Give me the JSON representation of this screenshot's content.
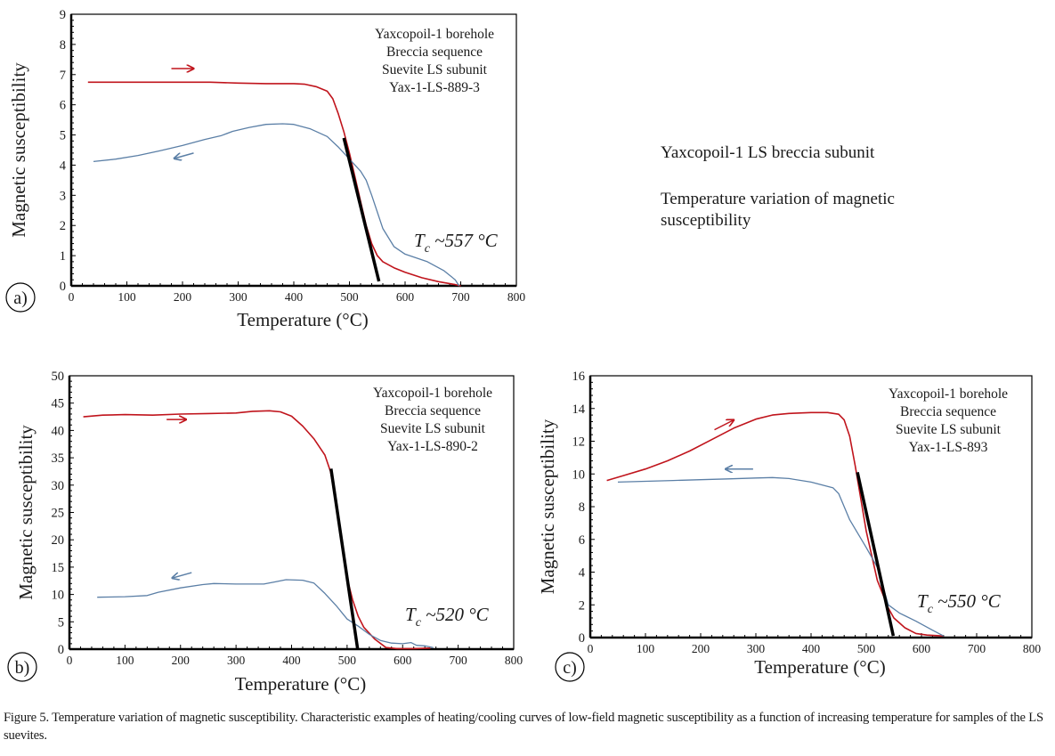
{
  "side_note": {
    "title": "Yaxcopoil-1 LS breccia subunit",
    "subtitle": "Temperature variation of magnetic susceptibility"
  },
  "caption": "Figure 5. Temperature variation of magnetic susceptibility. Characteristic examples of heating/cooling curves of low-field magnetic susceptibility as a function of increasing temperature for samples of the LS suevites.",
  "colors": {
    "heating": "#c0141c",
    "cooling": "#5b7fa6",
    "tangent": "#000000"
  },
  "chart_data": [
    {
      "id": "a",
      "panel_label": "a)",
      "type": "line",
      "xlabel": "Temperature (°C)",
      "ylabel": "Magnetic susceptibility",
      "xlim": [
        0,
        800
      ],
      "ylim": [
        0,
        9
      ],
      "xticks": [
        0,
        100,
        200,
        300,
        400,
        500,
        600,
        700,
        800
      ],
      "yticks": [
        0,
        1,
        2,
        3,
        4,
        5,
        6,
        7,
        8,
        9
      ],
      "grid": false,
      "annotation_lines": [
        "Yaxcopoil-1 borehole",
        "Breccia sequence",
        "Suevite LS subunit",
        "Yax-1-LS-889-3"
      ],
      "curie_label": {
        "symbol": "T",
        "sub": "c",
        "text": " ~557 °C",
        "value": 557
      },
      "series": [
        {
          "name": "heating",
          "direction": "→",
          "x": [
            30,
            100,
            200,
            250,
            300,
            350,
            400,
            420,
            440,
            460,
            470,
            480,
            490,
            500,
            510,
            520,
            530,
            540,
            550,
            560,
            580,
            600,
            630,
            660,
            690,
            700
          ],
          "y": [
            6.75,
            6.75,
            6.75,
            6.75,
            6.72,
            6.7,
            6.7,
            6.68,
            6.6,
            6.45,
            6.2,
            5.7,
            5.1,
            4.4,
            3.6,
            2.8,
            2.0,
            1.4,
            1.0,
            0.8,
            0.6,
            0.45,
            0.27,
            0.14,
            0.04,
            0.0
          ]
        },
        {
          "name": "cooling",
          "direction": "←",
          "x": [
            40,
            80,
            120,
            160,
            200,
            240,
            270,
            290,
            320,
            350,
            380,
            400,
            430,
            460,
            480,
            500,
            520,
            530,
            540,
            560,
            580,
            600,
            640,
            670,
            690,
            697
          ],
          "y": [
            4.12,
            4.2,
            4.32,
            4.48,
            4.65,
            4.85,
            4.98,
            5.12,
            5.25,
            5.35,
            5.37,
            5.35,
            5.2,
            4.95,
            4.6,
            4.2,
            3.8,
            3.5,
            3.0,
            1.9,
            1.3,
            1.05,
            0.8,
            0.5,
            0.2,
            0.0
          ]
        }
      ],
      "tangent": {
        "x": [
          490,
          553
        ],
        "y": [
          4.9,
          0.15
        ]
      },
      "arrows": [
        {
          "series": "heating",
          "x": [
            180,
            220
          ],
          "y": [
            7.2,
            7.2
          ]
        },
        {
          "series": "cooling",
          "x": [
            220,
            185
          ],
          "y": [
            4.4,
            4.22
          ]
        }
      ]
    },
    {
      "id": "b",
      "panel_label": "b)",
      "type": "line",
      "xlabel": "Temperature (°C)",
      "ylabel": "Magnetic susceptibility",
      "xlim": [
        0,
        800
      ],
      "ylim": [
        0,
        50
      ],
      "xticks": [
        0,
        100,
        200,
        300,
        400,
        500,
        600,
        700,
        800
      ],
      "yticks": [
        0,
        5,
        10,
        15,
        20,
        25,
        30,
        35,
        40,
        45,
        50
      ],
      "grid": false,
      "annotation_lines": [
        "Yaxcopoil-1 borehole",
        "Breccia sequence",
        "Suevite LS subunit",
        "Yax-1-LS-890-2"
      ],
      "curie_label": {
        "symbol": "T",
        "sub": "c",
        "text": " ~520 °C",
        "value": 520
      },
      "series": [
        {
          "name": "heating",
          "direction": "→",
          "x": [
            25,
            60,
            100,
            150,
            200,
            250,
            300,
            330,
            360,
            380,
            400,
            420,
            440,
            460,
            470,
            480,
            490,
            500,
            510,
            520,
            530,
            550,
            570,
            590,
            620,
            650
          ],
          "y": [
            42.5,
            42.8,
            42.9,
            42.8,
            43.0,
            43.1,
            43.2,
            43.5,
            43.6,
            43.4,
            42.6,
            40.8,
            38.5,
            35.5,
            32.5,
            27.0,
            20.0,
            13.0,
            9.0,
            6.0,
            4.0,
            1.8,
            0.3,
            0.1,
            0.1,
            0.2
          ]
        },
        {
          "name": "cooling",
          "direction": "←",
          "x": [
            50,
            100,
            140,
            160,
            200,
            240,
            260,
            300,
            350,
            370,
            390,
            420,
            440,
            460,
            480,
            500,
            520,
            540,
            560,
            580,
            600,
            615,
            625,
            640,
            655
          ],
          "y": [
            9.5,
            9.6,
            9.8,
            10.4,
            11.2,
            11.8,
            12.0,
            11.9,
            11.9,
            12.3,
            12.7,
            12.6,
            12.1,
            10.2,
            8.0,
            5.5,
            4.2,
            2.7,
            1.6,
            1.1,
            1.0,
            1.2,
            0.7,
            0.6,
            0.3
          ]
        }
      ],
      "tangent": {
        "x": [
          471,
          519
        ],
        "y": [
          33.0,
          0.0
        ]
      },
      "arrows": [
        {
          "series": "heating",
          "x": [
            175,
            210
          ],
          "y": [
            42.0,
            42.0
          ]
        },
        {
          "series": "cooling",
          "x": [
            220,
            185
          ],
          "y": [
            14.0,
            13.0
          ]
        }
      ]
    },
    {
      "id": "c",
      "panel_label": "c)",
      "type": "line",
      "xlabel": "Temperature (°C)",
      "ylabel": "Magnetic susceptibility",
      "xlim": [
        0,
        800
      ],
      "ylim": [
        0,
        16
      ],
      "xticks": [
        0,
        100,
        200,
        300,
        400,
        500,
        600,
        700,
        800
      ],
      "yticks": [
        0,
        2,
        4,
        6,
        8,
        10,
        12,
        14,
        16
      ],
      "grid": false,
      "annotation_lines": [
        "Yaxcopoil-1 borehole",
        "Breccia sequence",
        "Suevite LS subunit",
        "Yax-1-LS-893"
      ],
      "curie_label": {
        "symbol": "T",
        "sub": "c",
        "text": " ~550 °C",
        "value": 550
      },
      "series": [
        {
          "name": "heating",
          "direction": "→",
          "x": [
            30,
            60,
            100,
            140,
            180,
            220,
            260,
            300,
            330,
            360,
            400,
            430,
            450,
            460,
            470,
            480,
            490,
            500,
            520,
            540,
            550,
            570,
            590,
            610,
            640
          ],
          "y": [
            9.6,
            9.9,
            10.3,
            10.8,
            11.4,
            12.1,
            12.8,
            13.35,
            13.6,
            13.7,
            13.75,
            13.75,
            13.65,
            13.3,
            12.3,
            10.5,
            8.5,
            6.5,
            3.5,
            1.8,
            1.2,
            0.6,
            0.25,
            0.15,
            0.1
          ]
        },
        {
          "name": "cooling",
          "direction": "←",
          "x": [
            50,
            100,
            150,
            200,
            250,
            300,
            330,
            360,
            400,
            440,
            450,
            470,
            500,
            520,
            540,
            560,
            590,
            620,
            640
          ],
          "y": [
            9.5,
            9.55,
            9.6,
            9.65,
            9.7,
            9.75,
            9.78,
            9.72,
            9.5,
            9.15,
            8.8,
            7.2,
            5.5,
            4.3,
            2.0,
            1.5,
            1.0,
            0.45,
            0.1
          ]
        }
      ],
      "tangent": {
        "x": [
          484,
          549
        ],
        "y": [
          10.1,
          0.1
        ]
      },
      "arrows": [
        {
          "series": "heating",
          "x": [
            225,
            260
          ],
          "y": [
            12.7,
            13.3
          ]
        },
        {
          "series": "cooling",
          "x": [
            295,
            245
          ],
          "y": [
            10.3,
            10.3
          ]
        }
      ]
    }
  ]
}
